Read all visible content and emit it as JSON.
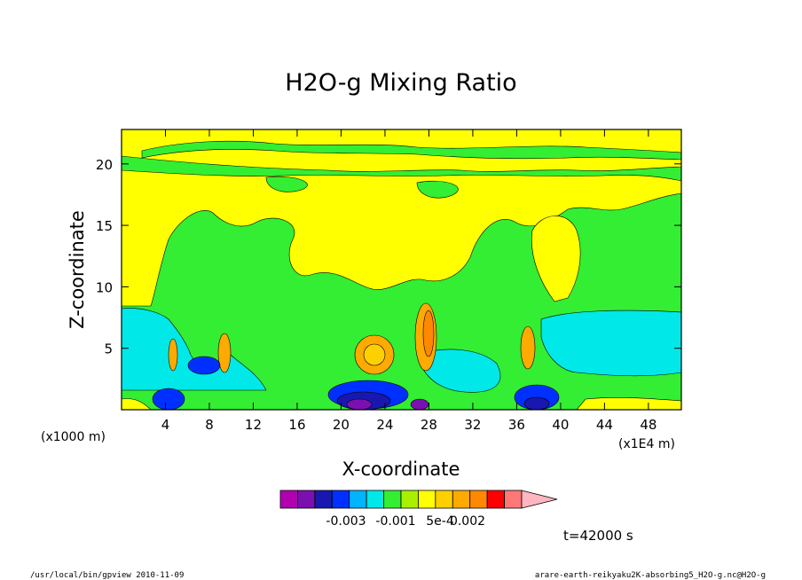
{
  "chart_data": {
    "type": "heatmap",
    "title": "H2O-g Mixing Ratio",
    "xlabel": "X-coordinate",
    "ylabel": "Z-coordinate",
    "x_unit_left": "(x1000 m)",
    "x_unit_right": "(x1E4 m)",
    "x_ticks": [
      4,
      8,
      12,
      16,
      20,
      24,
      28,
      32,
      36,
      40,
      44,
      48
    ],
    "y_ticks": [
      5,
      10,
      15,
      20
    ],
    "xlim": [
      0,
      51
    ],
    "ylim": [
      0,
      22.8
    ],
    "time_label": "t=42000 s",
    "colorbar": {
      "colors": [
        "#b000b0",
        "#7a10b0",
        "#1818b0",
        "#0030ff",
        "#00b4ff",
        "#00e8e8",
        "#33ee33",
        "#a8f000",
        "#ffff00",
        "#ffd000",
        "#ffaa00",
        "#ff8800",
        "#ff0000",
        "#ff7777",
        "#ffb6c1"
      ],
      "labels": [
        "-0.003",
        "-0.001",
        "5e-4",
        "0.002"
      ]
    },
    "fields": {
      "background": "#33ee33",
      "yellow": "#ffff00",
      "cyan": "#00e8e8",
      "blue": "#0030ff",
      "navy": "#1818b0",
      "purple": "#7a10b0",
      "orange": "#ffaa00",
      "light_orange": "#ffd000",
      "dark_orange": "#ff8800"
    }
  },
  "footer": {
    "left": "/usr/local/bin/gpview   2010-11-09",
    "right": "arare-earth-reikyaku2K-absorbing5_H2O-g.nc@H2O-g"
  }
}
